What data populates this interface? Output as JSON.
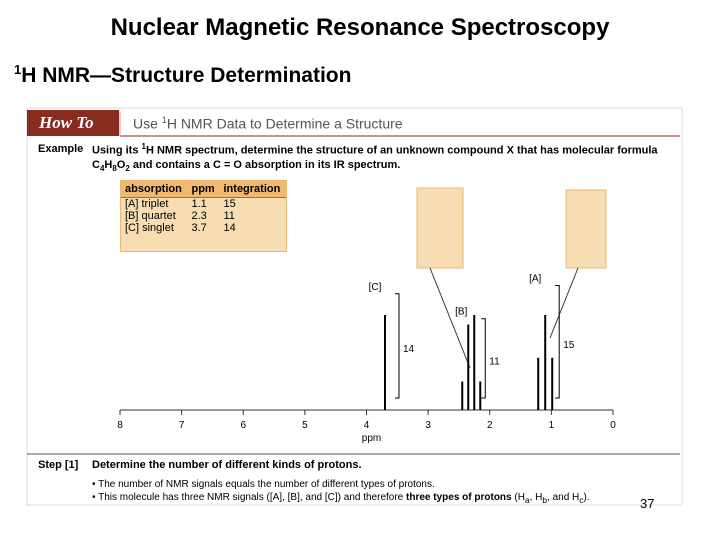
{
  "slide": {
    "title": "Nuclear Magnetic Resonance Spectroscopy",
    "subtitle_sup": "1",
    "subtitle": "H NMR—Structure Determination",
    "page_number": "37"
  },
  "howto": {
    "label": "How To",
    "heading_pre": "Use ",
    "heading_sup": "1",
    "heading_post": "H NMR Data to Determine a Structure"
  },
  "example": {
    "label": "Example",
    "line1_pre": "Using its ",
    "line1_sup": "1",
    "line1_post": "H NMR spectrum, determine the structure of an unknown compound ",
    "line1_bold": "X",
    "line1_end": " that has molecular formula",
    "formula": [
      "C",
      "4",
      "H",
      "8",
      "O",
      "2"
    ],
    "line2_end": " and contains a C = O absorption in its IR spectrum."
  },
  "table": {
    "headers": [
      "absorption",
      "ppm",
      "integration"
    ],
    "rows": [
      [
        "[A] triplet",
        1.1,
        15
      ],
      [
        "[B] quartet",
        2.3,
        11
      ],
      [
        "[C] singlet",
        3.7,
        14
      ]
    ]
  },
  "spectrum": {
    "peak_labels": [
      "[A]",
      "[B]",
      "[C]"
    ],
    "xlim": [
      8,
      0
    ],
    "xticks": [
      8,
      7,
      6,
      5,
      4,
      3,
      2,
      1,
      0
    ],
    "xlabel": "ppm"
  },
  "step": {
    "label": "Step [1]",
    "heading": "Determine the number of different kinds of protons.",
    "bullet1": "The number of NMR signals equals the number of different types of protons.",
    "bullet2_pre": "This molecule has three NMR signals ([A], [B], and [C]) and therefore ",
    "bullet2_bold": "three types of protons",
    "bullet2_h1": " (H",
    "sub_a": "a",
    "bullet2_h2": ", H",
    "sub_b": "b",
    "bullet2_h3": ", and H",
    "sub_c": "c",
    "bullet2_end": ")."
  }
}
